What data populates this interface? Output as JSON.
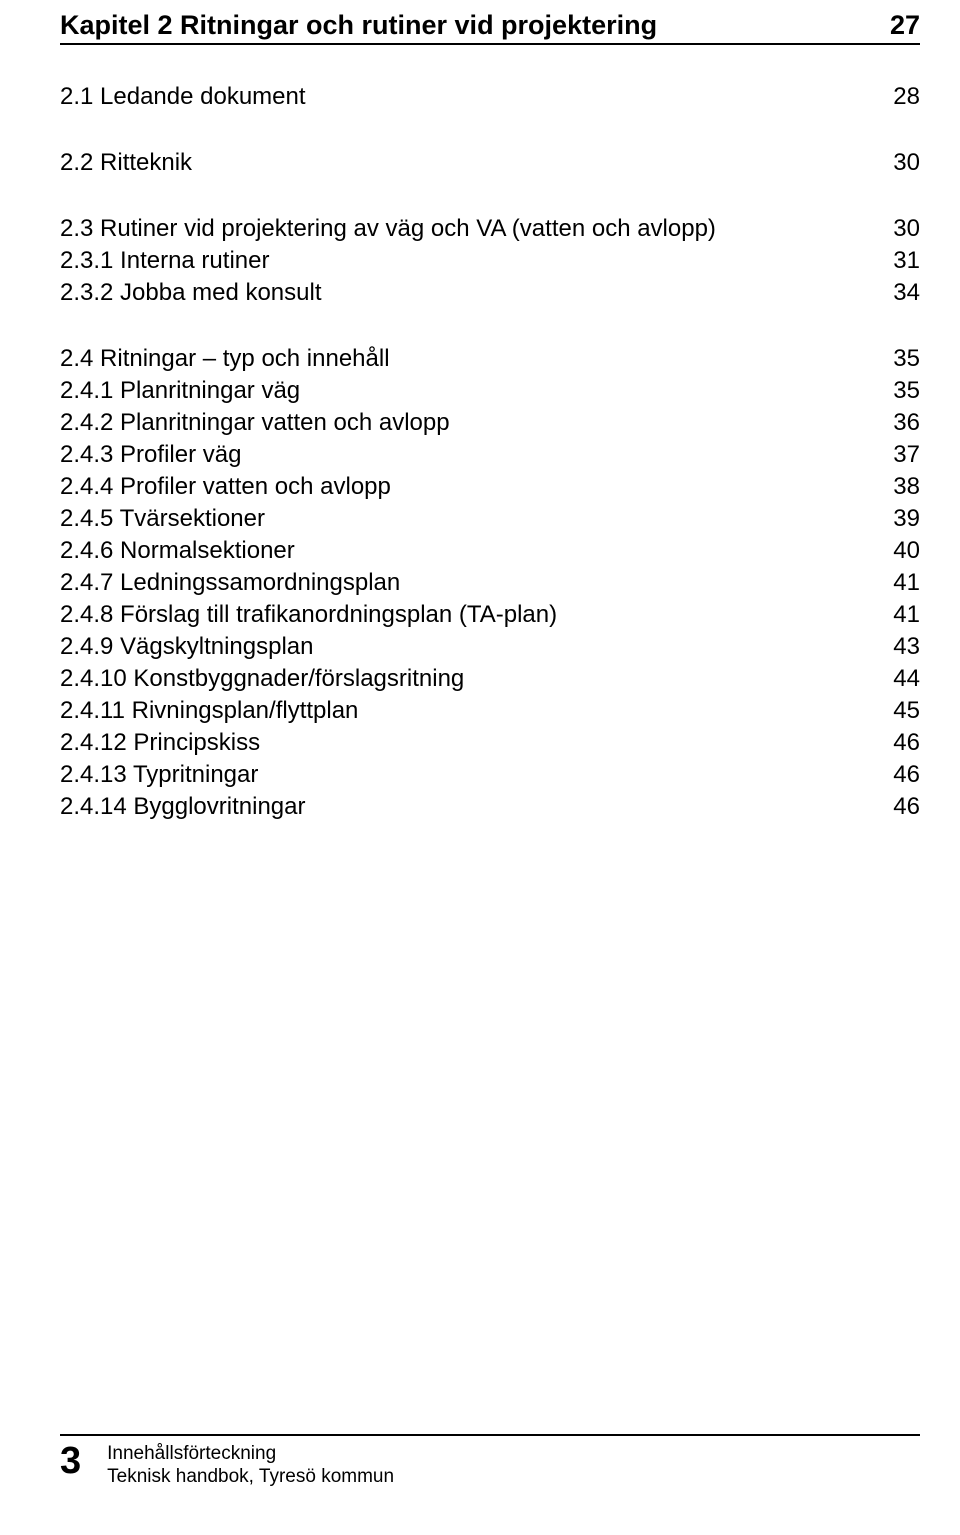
{
  "chapter": {
    "title": "Kapitel 2 Ritningar och rutiner vid projektering",
    "page": "27"
  },
  "sections": [
    {
      "label": "2.1  Ledande dokument",
      "page": "28",
      "subs": []
    },
    {
      "label": "2.2  Ritteknik",
      "page": "30",
      "subs": []
    },
    {
      "label": "2.3  Rutiner vid projektering av väg och VA (vatten och avlopp)",
      "page": "30",
      "subs": [
        {
          "label": "2.3.1  Interna rutiner",
          "page": "31"
        },
        {
          "label": "2.3.2  Jobba med konsult",
          "page": "34"
        }
      ]
    },
    {
      "label": "2.4  Ritningar – typ och innehåll",
      "page": "35",
      "subs": [
        {
          "label": "2.4.1  Planritningar väg",
          "page": "35"
        },
        {
          "label": "2.4.2  Planritningar vatten och avlopp",
          "page": "36"
        },
        {
          "label": "2.4.3  Profiler väg",
          "page": "37"
        },
        {
          "label": "2.4.4  Profiler vatten och avlopp",
          "page": "38"
        },
        {
          "label": "2.4.5  Tvärsektioner",
          "page": "39"
        },
        {
          "label": "2.4.6  Normalsektioner",
          "page": "40"
        },
        {
          "label": "2.4.7  Ledningssamordningsplan",
          "page": "41"
        },
        {
          "label": "2.4.8  Förslag till trafikanordningsplan (TA-plan)",
          "page": "41"
        },
        {
          "label": "2.4.9  Vägskyltningsplan",
          "page": "43"
        },
        {
          "label": "2.4.10  Konstbyggnader/förslagsritning",
          "page": "44"
        },
        {
          "label": "2.4.11  Rivningsplan/flyttplan",
          "page": "45"
        },
        {
          "label": "2.4.12  Principskiss",
          "page": "46"
        },
        {
          "label": "2.4.13  Typritningar",
          "page": "46"
        },
        {
          "label": "2.4.14  Bygglovritningar",
          "page": "46"
        }
      ]
    }
  ],
  "footer": {
    "pagenum": "3",
    "line1": "Innehållsförteckning",
    "line2": "Teknisk handbok, Tyresö kommun"
  }
}
